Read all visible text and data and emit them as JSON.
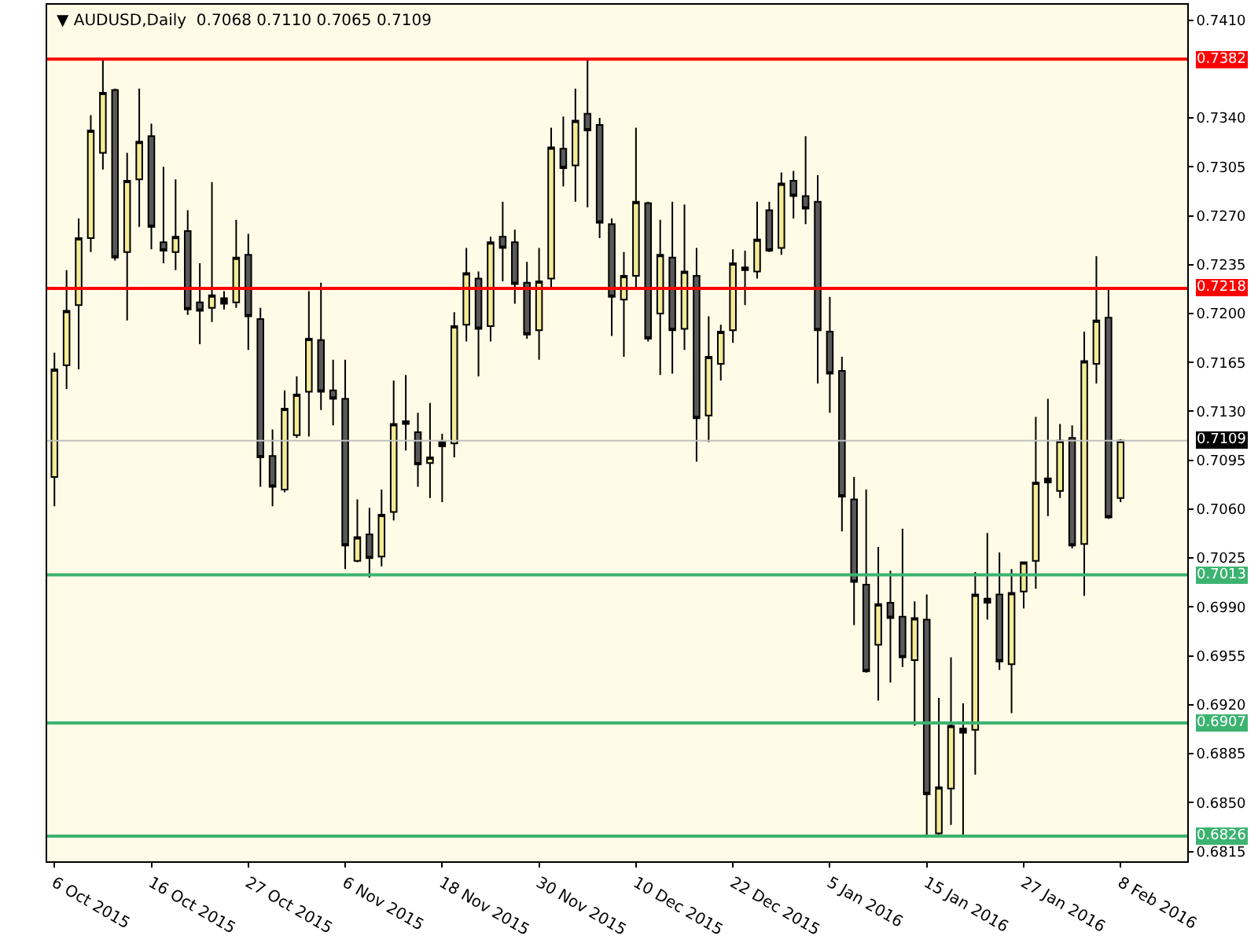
{
  "chart_data": {
    "type": "candlestick",
    "title": "▼ AUDUSD,Daily  0.7068 0.7110 0.7065 0.7109",
    "categories": [
      "6 Oct 2015",
      null,
      null,
      null,
      null,
      null,
      null,
      null,
      "16 Oct 2015",
      null,
      null,
      null,
      null,
      null,
      null,
      null,
      "27 Oct 2015",
      null,
      null,
      null,
      null,
      null,
      null,
      null,
      "6 Nov 2015",
      null,
      null,
      null,
      null,
      null,
      null,
      null,
      "18 Nov 2015",
      null,
      null,
      null,
      null,
      null,
      null,
      null,
      "30 Nov 2015",
      null,
      null,
      null,
      null,
      null,
      null,
      null,
      "10 Dec 2015",
      null,
      null,
      null,
      null,
      null,
      null,
      null,
      "22 Dec 2015",
      null,
      null,
      null,
      null,
      null,
      null,
      null,
      "5 Jan 2016",
      null,
      null,
      null,
      null,
      null,
      null,
      null,
      "15 Jan 2016",
      null,
      null,
      null,
      null,
      null,
      null,
      null,
      "27 Jan 2016",
      null,
      null,
      null,
      null,
      null,
      null,
      null,
      "8 Feb 2016"
    ],
    "ohlc": [
      [
        0.7083,
        0.7172,
        0.7062,
        0.716
      ],
      [
        0.7163,
        0.7231,
        0.7146,
        0.7202
      ],
      [
        0.7206,
        0.7268,
        0.716,
        0.7254
      ],
      [
        0.7254,
        0.7342,
        0.7244,
        0.7331
      ],
      [
        0.7315,
        0.7381,
        0.7303,
        0.7358
      ],
      [
        0.736,
        0.7361,
        0.7238,
        0.724
      ],
      [
        0.7244,
        0.7315,
        0.7195,
        0.7295
      ],
      [
        0.7296,
        0.7361,
        0.7262,
        0.7323
      ],
      [
        0.7327,
        0.7336,
        0.7246,
        0.7262
      ],
      [
        0.7251,
        0.7305,
        0.7236,
        0.7245
      ],
      [
        0.7244,
        0.7296,
        0.7231,
        0.7255
      ],
      [
        0.7259,
        0.7274,
        0.7199,
        0.7203
      ],
      [
        0.7208,
        0.7236,
        0.7178,
        0.7202
      ],
      [
        0.7204,
        0.7294,
        0.7194,
        0.7213
      ],
      [
        0.7211,
        0.7216,
        0.7203,
        0.7207
      ],
      [
        0.7208,
        0.7267,
        0.7204,
        0.724
      ],
      [
        0.7242,
        0.7257,
        0.7174,
        0.7198
      ],
      [
        0.7196,
        0.7204,
        0.7076,
        0.7097
      ],
      [
        0.7098,
        0.7117,
        0.7062,
        0.7076
      ],
      [
        0.7074,
        0.7145,
        0.7072,
        0.7132
      ],
      [
        0.7113,
        0.7155,
        0.7111,
        0.7142
      ],
      [
        0.7144,
        0.7216,
        0.7112,
        0.7182
      ],
      [
        0.7181,
        0.7222,
        0.7131,
        0.7144
      ],
      [
        0.7145,
        0.7167,
        0.712,
        0.7139
      ],
      [
        0.7139,
        0.7167,
        0.7017,
        0.7034
      ],
      [
        0.7023,
        0.7067,
        0.7022,
        0.704
      ],
      [
        0.7042,
        0.7061,
        0.7011,
        0.7025
      ],
      [
        0.7026,
        0.7074,
        0.7019,
        0.7056
      ],
      [
        0.7058,
        0.7152,
        0.7052,
        0.7121
      ],
      [
        0.7121,
        0.7156,
        0.7102,
        0.7123
      ],
      [
        0.7115,
        0.7129,
        0.7076,
        0.7092
      ],
      [
        0.7093,
        0.7136,
        0.7068,
        0.7097
      ],
      [
        0.7108,
        0.7114,
        0.7065,
        0.7105
      ],
      [
        0.7107,
        0.7201,
        0.7097,
        0.7191
      ],
      [
        0.7192,
        0.7247,
        0.718,
        0.7229
      ],
      [
        0.7225,
        0.723,
        0.7155,
        0.7189
      ],
      [
        0.7191,
        0.7255,
        0.718,
        0.7251
      ],
      [
        0.7255,
        0.728,
        0.7223,
        0.7247
      ],
      [
        0.7251,
        0.726,
        0.7207,
        0.7221
      ],
      [
        0.7222,
        0.7237,
        0.7182,
        0.7185
      ],
      [
        0.7188,
        0.7247,
        0.7167,
        0.7223
      ],
      [
        0.7225,
        0.7333,
        0.7219,
        0.7319
      ],
      [
        0.7318,
        0.7341,
        0.7291,
        0.7304
      ],
      [
        0.7306,
        0.7361,
        0.728,
        0.7338
      ],
      [
        0.7343,
        0.7382,
        0.7276,
        0.7331
      ],
      [
        0.7335,
        0.734,
        0.7254,
        0.7265
      ],
      [
        0.7264,
        0.7268,
        0.7184,
        0.7212
      ],
      [
        0.721,
        0.7244,
        0.7169,
        0.7227
      ],
      [
        0.7227,
        0.7333,
        0.7217,
        0.728
      ],
      [
        0.7279,
        0.728,
        0.718,
        0.7182
      ],
      [
        0.72,
        0.7267,
        0.7156,
        0.7242
      ],
      [
        0.724,
        0.728,
        0.7157,
        0.7188
      ],
      [
        0.7189,
        0.7278,
        0.7174,
        0.723
      ],
      [
        0.7227,
        0.7247,
        0.7094,
        0.7125
      ],
      [
        0.7127,
        0.7198,
        0.7108,
        0.7169
      ],
      [
        0.7164,
        0.7192,
        0.7152,
        0.7187
      ],
      [
        0.7188,
        0.7246,
        0.7179,
        0.7236
      ],
      [
        0.7233,
        0.7245,
        0.7206,
        0.7231
      ],
      [
        0.723,
        0.728,
        0.7225,
        0.7253
      ],
      [
        0.7274,
        0.728,
        0.7244,
        0.7245
      ],
      [
        0.7247,
        0.7301,
        0.7242,
        0.7293
      ],
      [
        0.7295,
        0.7302,
        0.7268,
        0.7284
      ],
      [
        0.7284,
        0.7327,
        0.7264,
        0.7275
      ],
      [
        0.728,
        0.7299,
        0.715,
        0.7188
      ],
      [
        0.7187,
        0.7212,
        0.7129,
        0.7157
      ],
      [
        0.7159,
        0.7169,
        0.7044,
        0.7069
      ],
      [
        0.7067,
        0.7083,
        0.6977,
        0.7008
      ],
      [
        0.7006,
        0.7074,
        0.6943,
        0.6944
      ],
      [
        0.6963,
        0.7033,
        0.6923,
        0.6992
      ],
      [
        0.6993,
        0.7016,
        0.6936,
        0.6982
      ],
      [
        0.6983,
        0.7046,
        0.6947,
        0.6954
      ],
      [
        0.6952,
        0.6994,
        0.6905,
        0.6982
      ],
      [
        0.6981,
        0.6999,
        0.6826,
        0.6856
      ],
      [
        0.6828,
        0.6925,
        0.6827,
        0.6861
      ],
      [
        0.686,
        0.6954,
        0.6834,
        0.6905
      ],
      [
        0.69,
        0.6921,
        0.6826,
        0.6903
      ],
      [
        0.6902,
        0.7015,
        0.687,
        0.6999
      ],
      [
        0.6993,
        0.7043,
        0.6981,
        0.6996
      ],
      [
        0.6999,
        0.7029,
        0.6945,
        0.6951
      ],
      [
        0.6949,
        0.7017,
        0.6914,
        0.7
      ],
      [
        0.7001,
        0.7022,
        0.6989,
        0.7022
      ],
      [
        0.7023,
        0.7126,
        0.7003,
        0.7079
      ],
      [
        0.7079,
        0.7139,
        0.7055,
        0.7082
      ],
      [
        0.7073,
        0.7121,
        0.7068,
        0.7109
      ],
      [
        0.7111,
        0.712,
        0.7032,
        0.7034
      ],
      [
        0.7035,
        0.7187,
        0.6998,
        0.7166
      ],
      [
        0.7164,
        0.7241,
        0.715,
        0.7195
      ],
      [
        0.7197,
        0.7218,
        0.7053,
        0.7054
      ],
      [
        0.7068,
        0.711,
        0.7065,
        0.7109
      ]
    ],
    "colors": [
      "#f3eb96",
      "#f3eb96",
      "#f3eb96",
      "#f3eb96",
      "#f3eb96",
      "#595959",
      "#f3eb96",
      "#f3eb96",
      "#595959",
      "#595959",
      "#f3eb96",
      "#595959",
      "#595959",
      "#f3eb96",
      "#000000",
      "#f3eb96",
      "#595959",
      "#595959",
      "#595959",
      "#f3eb96",
      "#f3eb96",
      "#f3eb96",
      "#595959",
      "#595959",
      "#595959",
      "#f3eb96",
      "#595959",
      "#f3eb96",
      "#f3eb96",
      "#000000",
      "#595959",
      "#f3eb96",
      "#000000",
      "#f3eb96",
      "#f3eb96",
      "#595959",
      "#f3eb96",
      "#595959",
      "#595959",
      "#595959",
      "#f3eb96",
      "#f3eb96",
      "#595959",
      "#f3eb96",
      "#595959",
      "#595959",
      "#595959",
      "#f3eb96",
      "#f3eb96",
      "#595959",
      "#f3eb96",
      "#595959",
      "#f3eb96",
      "#595959",
      "#f3eb96",
      "#f3eb96",
      "#f3eb96",
      "#000000",
      "#f3eb96",
      "#595959",
      "#f3eb96",
      "#595959",
      "#595959",
      "#595959",
      "#595959",
      "#595959",
      "#595959",
      "#595959",
      "#f3eb96",
      "#595959",
      "#595959",
      "#f3eb96",
      "#595959",
      "#f3eb96",
      "#f3eb96",
      "#000000",
      "#f3eb96",
      "#000000",
      "#595959",
      "#f3eb96",
      "#f3eb96",
      "#f3eb96",
      "#000000",
      "#f3eb96",
      "#595959",
      "#f3eb96",
      "#f3eb96",
      "#595959",
      "#f3eb96"
    ],
    "ylim": [
      0.6808,
      0.7421
    ],
    "yticks": [
      {
        "value": 0.741,
        "label": "0.7410"
      },
      {
        "value": 0.734,
        "label": "0.7340"
      },
      {
        "value": 0.7305,
        "label": "0.7305"
      },
      {
        "value": 0.727,
        "label": "0.7270"
      },
      {
        "value": 0.7235,
        "label": "0.7235"
      },
      {
        "value": 0.72,
        "label": "0.7200"
      },
      {
        "value": 0.7165,
        "label": "0.7165"
      },
      {
        "value": 0.713,
        "label": "0.7130"
      },
      {
        "value": 0.7095,
        "label": "0.7095"
      },
      {
        "value": 0.706,
        "label": "0.7060"
      },
      {
        "value": 0.7025,
        "label": "0.7025"
      },
      {
        "value": 0.699,
        "label": "0.6990"
      },
      {
        "value": 0.6955,
        "label": "0.6955"
      },
      {
        "value": 0.692,
        "label": "0.6920"
      },
      {
        "value": 0.6885,
        "label": "0.6885"
      },
      {
        "value": 0.685,
        "label": "0.6850"
      },
      {
        "value": 0.6815,
        "label": "0.6815"
      }
    ],
    "ref_lines": [
      {
        "axis": "y",
        "value": 0.7382,
        "label": "0.7382",
        "color": "#ff0000"
      },
      {
        "axis": "y",
        "value": 0.7218,
        "label": "0.7218",
        "color": "#ff0000"
      },
      {
        "axis": "y",
        "value": 0.7109,
        "label": "0.7109",
        "color": "#c0c0c0"
      },
      {
        "axis": "y",
        "value": 0.7013,
        "label": "0.7013",
        "color": "#3cb371"
      },
      {
        "axis": "y",
        "value": 0.6907,
        "label": "0.6907",
        "color": "#3cb371"
      },
      {
        "axis": "y",
        "value": 0.6826,
        "label": "0.6826",
        "color": "#3cb371"
      }
    ],
    "grid": false
  }
}
